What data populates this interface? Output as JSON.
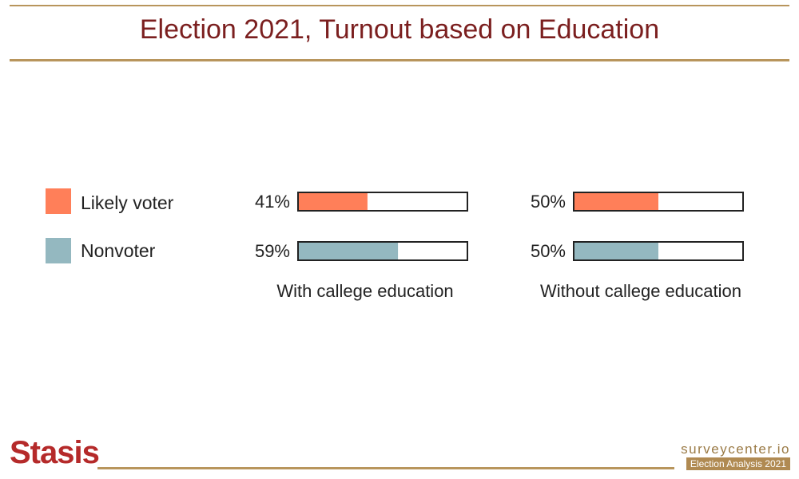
{
  "title": "Election 2021, Turnout based on Education",
  "colors": {
    "likely": "#ff7f59",
    "nonvoter": "#94b8c0",
    "title": "#7b1f1f",
    "rule": "#b8955c"
  },
  "chart_data": {
    "type": "bar",
    "orientation": "horizontal",
    "title": "Election 2021, Turnout based on Education",
    "categories": [
      "With callege education",
      "Without callege education"
    ],
    "series": [
      {
        "name": "Likely voter",
        "values": [
          41,
          50
        ],
        "labels": [
          "41%",
          "50%"
        ]
      },
      {
        "name": "Nonvoter",
        "values": [
          59,
          50
        ],
        "labels": [
          "59%",
          "50%"
        ]
      }
    ],
    "xlim": [
      0,
      100
    ],
    "legend": "left",
    "grid": false
  },
  "footer": {
    "logo": "Stasis",
    "site": "surveycenter.io",
    "badge": "Election Analysis 2021"
  }
}
